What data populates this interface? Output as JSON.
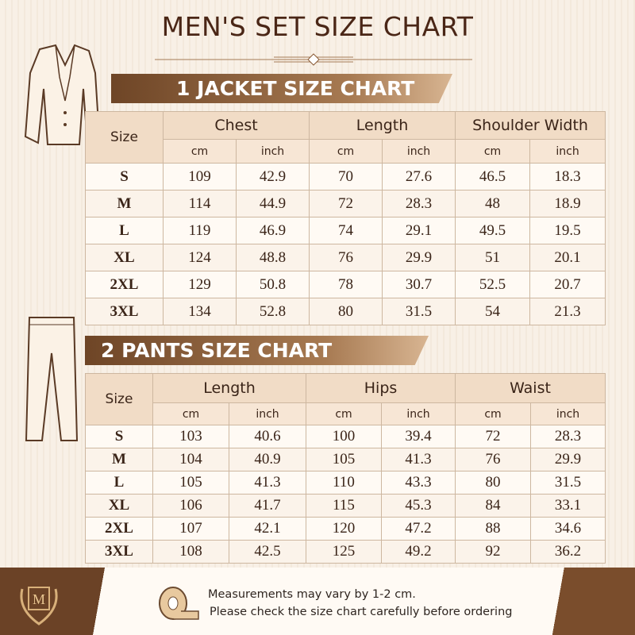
{
  "title": "MEN'S SET SIZE CHART",
  "jacket": {
    "heading": "1 JACKET SIZE CHART",
    "size_label": "Size",
    "groups": [
      "Chest",
      "Length",
      "Shoulder Width"
    ],
    "units": [
      "cm",
      "inch",
      "cm",
      "inch",
      "cm",
      "inch"
    ],
    "rows": [
      [
        "S",
        109,
        42.9,
        70,
        27.6,
        46.5,
        18.3
      ],
      [
        "M",
        114,
        44.9,
        72,
        28.3,
        48,
        18.9
      ],
      [
        "L",
        119,
        46.9,
        74,
        29.1,
        49.5,
        19.5
      ],
      [
        "XL",
        124,
        48.8,
        76,
        29.9,
        51,
        20.1
      ],
      [
        "2XL",
        129,
        50.8,
        78,
        30.7,
        52.5,
        20.7
      ],
      [
        "3XL",
        134,
        52.8,
        80,
        31.5,
        54,
        21.3
      ]
    ]
  },
  "pants": {
    "heading": "2 PANTS SIZE CHART",
    "size_label": "Size",
    "groups": [
      "Length",
      "Hips",
      "Waist"
    ],
    "units": [
      "cm",
      "inch",
      "cm",
      "inch",
      "cm",
      "inch"
    ],
    "rows": [
      [
        "S",
        103,
        40.6,
        100,
        39.4,
        72,
        28.3
      ],
      [
        "M",
        104,
        40.9,
        105,
        41.3,
        76,
        29.9
      ],
      [
        "L",
        105,
        41.3,
        110,
        43.3,
        80,
        31.5
      ],
      [
        "XL",
        106,
        41.7,
        115,
        45.3,
        84,
        33.1
      ],
      [
        "2XL",
        107,
        42.1,
        120,
        47.2,
        88,
        34.6
      ],
      [
        "3XL",
        108,
        42.5,
        125,
        49.2,
        92,
        36.2
      ]
    ]
  },
  "logo": "M",
  "footer": {
    "lines": [
      "Measurements may vary by 1-2 cm.",
      "Please check the size chart carefully before ordering"
    ]
  }
}
